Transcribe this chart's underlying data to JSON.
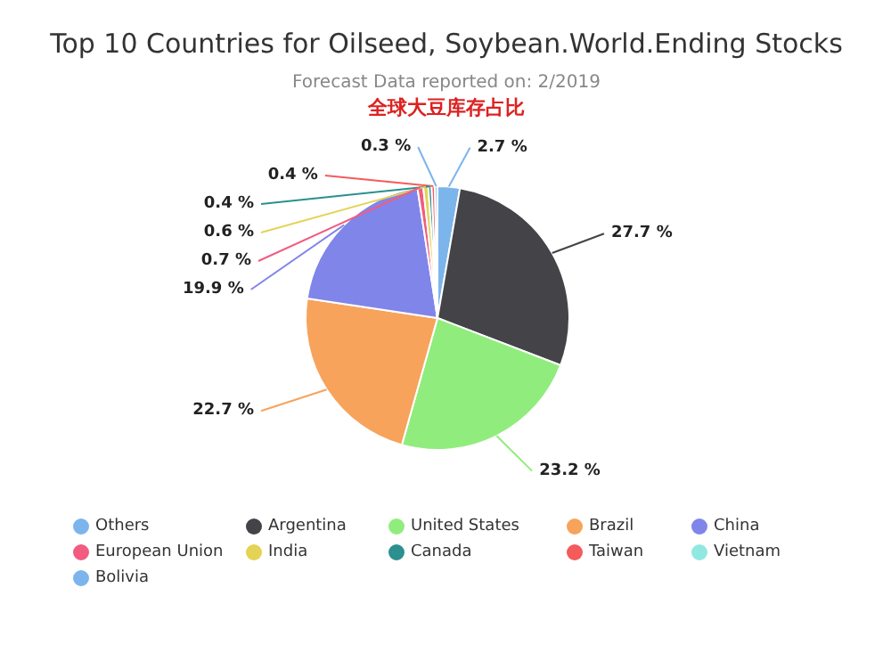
{
  "chart_data": {
    "type": "pie",
    "title": "Top 10 Countries for Oilseed, Soybean.World.Ending Stocks",
    "subtitle": "Forecast Data reported on: 2/2019",
    "annotations": [
      "全球大豆库存占比"
    ],
    "categories": [
      "Others",
      "Argentina",
      "United States",
      "Brazil",
      "China",
      "European Union",
      "India",
      "Canada",
      "Taiwan",
      "Vietnam",
      "Bolivia"
    ],
    "values": [
      2.7,
      27.7,
      23.2,
      22.7,
      19.9,
      0.7,
      0.6,
      0.4,
      0.4,
      null,
      0.3
    ],
    "value_labels": [
      "2.7 %",
      "27.7 %",
      "23.2 %",
      "22.7 %",
      "19.9 %",
      "0.7 %",
      "0.6 %",
      "0.4 %",
      "0.4 %",
      null,
      "0.3 %"
    ],
    "colors": [
      "#7cb5ec",
      "#434348",
      "#90ed7d",
      "#f7a35c",
      "#8085e9",
      "#f15c80",
      "#e4d354",
      "#2b908f",
      "#f45b5b",
      "#91e8e1",
      "#7cb5ec"
    ],
    "legend": "bottom"
  }
}
